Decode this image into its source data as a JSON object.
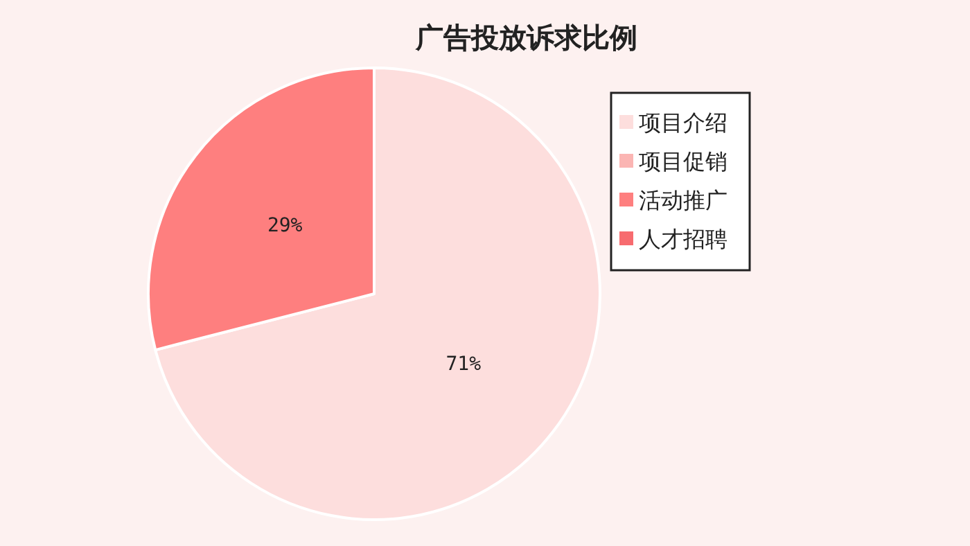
{
  "chart_data": {
    "type": "pie",
    "title": "广告投放诉求比例",
    "categories": [
      "项目介绍",
      "项目促销",
      "活动推广",
      "人才招聘"
    ],
    "values": [
      71,
      0,
      29,
      0
    ],
    "value_labels": [
      "71%",
      null,
      "29%",
      null
    ],
    "colors": [
      "#fddedd",
      "#fbb5b3",
      "#fe7f7f",
      "#f76b6f"
    ],
    "legend": "right"
  }
}
